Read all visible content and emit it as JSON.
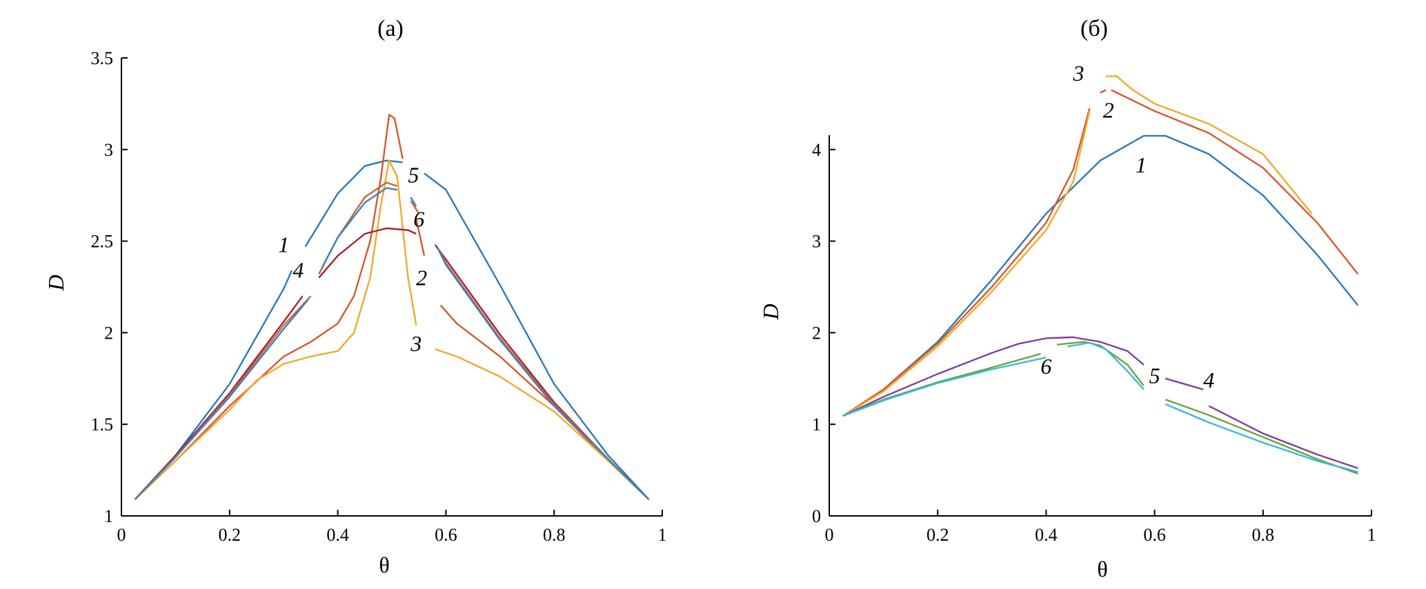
{
  "chart_data": [
    {
      "type": "line",
      "title": "(а)",
      "xlabel": "θ",
      "ylabel": "D",
      "xlim": [
        0,
        1
      ],
      "ylim": [
        1,
        3.5
      ],
      "x_ticks": [
        "0",
        "0.2",
        "0.4",
        "0.6",
        "0.8",
        "1"
      ],
      "y_ticks": [
        "1",
        "1.5",
        "2",
        "2.5",
        "3",
        "3.5"
      ],
      "grid": false,
      "legend": "none",
      "series": [
        {
          "color": "#2a7ab9",
          "segments": [
            [
              [
                0.025,
                1.09
              ],
              [
                0.1,
                1.33
              ],
              [
                0.2,
                1.72
              ],
              [
                0.3,
                2.24
              ],
              [
                0.315,
                2.34
              ]
            ],
            [
              [
                0.34,
                2.47
              ],
              [
                0.4,
                2.76
              ],
              [
                0.45,
                2.91
              ],
              [
                0.49,
                2.94
              ],
              [
                0.52,
                2.93
              ]
            ],
            [
              [
                0.56,
                2.87
              ],
              [
                0.6,
                2.78
              ],
              [
                0.7,
                2.26
              ],
              [
                0.8,
                1.72
              ],
              [
                0.9,
                1.33
              ],
              [
                0.975,
                1.09
              ]
            ]
          ]
        },
        {
          "color": "#d9572b",
          "segments": [
            [
              [
                0.025,
                1.09
              ],
              [
                0.1,
                1.3
              ],
              [
                0.2,
                1.6
              ],
              [
                0.3,
                1.87
              ],
              [
                0.35,
                1.95
              ],
              [
                0.4,
                2.05
              ],
              [
                0.43,
                2.2
              ],
              [
                0.46,
                2.5
              ],
              [
                0.48,
                2.85
              ],
              [
                0.495,
                3.19
              ],
              [
                0.505,
                3.17
              ],
              [
                0.52,
                2.95
              ]
            ],
            [
              [
                0.545,
                2.62
              ],
              [
                0.56,
                2.42
              ]
            ],
            [
              [
                0.59,
                2.15
              ],
              [
                0.62,
                2.05
              ],
              [
                0.7,
                1.87
              ],
              [
                0.8,
                1.6
              ],
              [
                0.9,
                1.3
              ],
              [
                0.975,
                1.09
              ]
            ]
          ]
        },
        {
          "color": "#efaa2b",
          "segments": [
            [
              [
                0.025,
                1.09
              ],
              [
                0.1,
                1.3
              ],
              [
                0.2,
                1.58
              ],
              [
                0.25,
                1.74
              ],
              [
                0.3,
                1.83
              ],
              [
                0.35,
                1.87
              ],
              [
                0.4,
                1.9
              ],
              [
                0.43,
                2.0
              ],
              [
                0.46,
                2.3
              ],
              [
                0.48,
                2.7
              ],
              [
                0.495,
                2.94
              ],
              [
                0.51,
                2.85
              ],
              [
                0.53,
                2.3
              ],
              [
                0.545,
                2.04
              ]
            ],
            [
              [
                0.58,
                1.91
              ],
              [
                0.62,
                1.87
              ],
              [
                0.7,
                1.76
              ],
              [
                0.8,
                1.57
              ],
              [
                0.9,
                1.3
              ],
              [
                0.975,
                1.09
              ]
            ]
          ]
        },
        {
          "color": "#aa1f2f",
          "segments": [
            [
              [
                0.025,
                1.09
              ],
              [
                0.1,
                1.33
              ],
              [
                0.2,
                1.67
              ],
              [
                0.3,
                2.06
              ],
              [
                0.335,
                2.2
              ]
            ],
            [
              [
                0.365,
                2.3
              ],
              [
                0.4,
                2.42
              ],
              [
                0.45,
                2.54
              ],
              [
                0.49,
                2.57
              ],
              [
                0.53,
                2.56
              ],
              [
                0.545,
                2.54
              ]
            ],
            [
              [
                0.58,
                2.48
              ],
              [
                0.6,
                2.4
              ],
              [
                0.7,
                1.99
              ],
              [
                0.8,
                1.62
              ],
              [
                0.9,
                1.31
              ],
              [
                0.975,
                1.09
              ]
            ]
          ]
        },
        {
          "color": "#c8643a",
          "segments": [
            [
              [
                0.025,
                1.09
              ],
              [
                0.1,
                1.32
              ],
              [
                0.2,
                1.66
              ],
              [
                0.3,
                2.04
              ],
              [
                0.35,
                2.2
              ]
            ],
            [
              [
                0.365,
                2.32
              ],
              [
                0.4,
                2.52
              ],
              [
                0.45,
                2.74
              ],
              [
                0.49,
                2.82
              ],
              [
                0.51,
                2.8
              ]
            ],
            [
              [
                0.535,
                2.72
              ],
              [
                0.55,
                2.65
              ]
            ],
            [
              [
                0.585,
                2.46
              ],
              [
                0.6,
                2.38
              ],
              [
                0.7,
                1.97
              ],
              [
                0.8,
                1.61
              ],
              [
                0.9,
                1.31
              ],
              [
                0.975,
                1.09
              ]
            ]
          ]
        },
        {
          "color": "#3a84c0",
          "segments": [
            [
              [
                0.025,
                1.09
              ],
              [
                0.1,
                1.32
              ],
              [
                0.2,
                1.65
              ],
              [
                0.3,
                2.02
              ],
              [
                0.345,
                2.18
              ]
            ],
            [
              [
                0.37,
                2.35
              ],
              [
                0.4,
                2.52
              ],
              [
                0.45,
                2.71
              ],
              [
                0.49,
                2.79
              ],
              [
                0.51,
                2.78
              ]
            ],
            [
              [
                0.535,
                2.74
              ],
              [
                0.545,
                2.69
              ]
            ],
            [
              [
                0.585,
                2.46
              ],
              [
                0.6,
                2.37
              ],
              [
                0.7,
                1.96
              ],
              [
                0.8,
                1.6
              ],
              [
                0.9,
                1.31
              ],
              [
                0.975,
                1.09
              ]
            ]
          ]
        }
      ],
      "curve_labels": [
        {
          "text": "1",
          "x": 0.3,
          "y": 2.44
        },
        {
          "text": "2",
          "x": 0.555,
          "y": 2.26
        },
        {
          "text": "3",
          "x": 0.545,
          "y": 1.9
        },
        {
          "text": "4",
          "x": 0.327,
          "y": 2.3
        },
        {
          "text": "5",
          "x": 0.54,
          "y": 2.82
        },
        {
          "text": "6",
          "x": 0.55,
          "y": 2.58
        }
      ]
    },
    {
      "type": "line",
      "title": "(б)",
      "xlabel": "θ",
      "ylabel": "D",
      "xlim": [
        0,
        1
      ],
      "ylim": [
        0,
        5
      ],
      "x_ticks": [
        "0",
        "0.2",
        "0.4",
        "0.6",
        "0.8",
        "1"
      ],
      "y_ticks": [
        "0",
        "1",
        "2",
        "3",
        "4"
      ],
      "grid": false,
      "legend": "none",
      "series": [
        {
          "color": "#2a7ab9",
          "segments": [
            [
              [
                0.025,
                1.09
              ],
              [
                0.1,
                1.38
              ],
              [
                0.2,
                1.9
              ],
              [
                0.3,
                2.58
              ],
              [
                0.4,
                3.3
              ],
              [
                0.5,
                3.88
              ],
              [
                0.58,
                4.15
              ],
              [
                0.62,
                4.15
              ],
              [
                0.7,
                3.95
              ],
              [
                0.8,
                3.5
              ],
              [
                0.9,
                2.85
              ],
              [
                0.975,
                2.3
              ]
            ]
          ]
        },
        {
          "color": "#d9572b",
          "segments": [
            [
              [
                0.025,
                1.09
              ],
              [
                0.1,
                1.38
              ],
              [
                0.2,
                1.88
              ],
              [
                0.3,
                2.5
              ],
              [
                0.4,
                3.2
              ],
              [
                0.45,
                3.78
              ],
              [
                0.48,
                4.45
              ]
            ],
            [
              [
                0.5,
                4.62
              ],
              [
                0.51,
                4.65
              ]
            ],
            [
              [
                0.52,
                4.65
              ],
              [
                0.6,
                4.42
              ],
              [
                0.7,
                4.18
              ],
              [
                0.8,
                3.8
              ],
              [
                0.9,
                3.2
              ],
              [
                0.975,
                2.64
              ]
            ]
          ]
        },
        {
          "color": "#efaa2b",
          "segments": [
            [
              [
                0.025,
                1.09
              ],
              [
                0.1,
                1.36
              ],
              [
                0.2,
                1.85
              ],
              [
                0.3,
                2.45
              ],
              [
                0.4,
                3.12
              ],
              [
                0.45,
                3.65
              ],
              [
                0.48,
                4.42
              ]
            ],
            [
              [
                0.51,
                4.8
              ],
              [
                0.53,
                4.8
              ],
              [
                0.56,
                4.65
              ],
              [
                0.6,
                4.5
              ],
              [
                0.7,
                4.28
              ],
              [
                0.8,
                3.95
              ],
              [
                0.89,
                3.3
              ]
            ]
          ]
        },
        {
          "color": "#7e3fa2",
          "segments": [
            [
              [
                0.025,
                1.09
              ],
              [
                0.1,
                1.3
              ],
              [
                0.2,
                1.55
              ],
              [
                0.3,
                1.78
              ],
              [
                0.35,
                1.88
              ],
              [
                0.4,
                1.94
              ],
              [
                0.45,
                1.95
              ],
              [
                0.5,
                1.9
              ],
              [
                0.55,
                1.8
              ],
              [
                0.58,
                1.65
              ]
            ],
            [
              [
                0.62,
                1.5
              ],
              [
                0.69,
                1.38
              ]
            ],
            [
              [
                0.7,
                1.2
              ],
              [
                0.8,
                0.9
              ],
              [
                0.9,
                0.67
              ],
              [
                0.975,
                0.52
              ]
            ]
          ]
        },
        {
          "color": "#67a539",
          "segments": [
            [
              [
                0.025,
                1.09
              ],
              [
                0.1,
                1.27
              ],
              [
                0.2,
                1.46
              ],
              [
                0.3,
                1.62
              ],
              [
                0.39,
                1.77
              ]
            ],
            [
              [
                0.42,
                1.87
              ],
              [
                0.47,
                1.9
              ],
              [
                0.5,
                1.86
              ],
              [
                0.55,
                1.65
              ],
              [
                0.58,
                1.42
              ]
            ],
            [
              [
                0.62,
                1.27
              ],
              [
                0.7,
                1.1
              ],
              [
                0.8,
                0.86
              ],
              [
                0.9,
                0.62
              ],
              [
                0.975,
                0.46
              ]
            ]
          ]
        },
        {
          "color": "#3ab8df",
          "segments": [
            [
              [
                0.025,
                1.09
              ],
              [
                0.1,
                1.26
              ],
              [
                0.2,
                1.45
              ],
              [
                0.3,
                1.6
              ],
              [
                0.4,
                1.73
              ]
            ],
            [
              [
                0.44,
                1.85
              ],
              [
                0.48,
                1.89
              ],
              [
                0.51,
                1.82
              ],
              [
                0.55,
                1.58
              ],
              [
                0.58,
                1.38
              ]
            ],
            [
              [
                0.62,
                1.22
              ],
              [
                0.7,
                1.02
              ],
              [
                0.8,
                0.8
              ],
              [
                0.9,
                0.6
              ],
              [
                0.975,
                0.48
              ]
            ]
          ]
        }
      ],
      "curve_labels": [
        {
          "text": "1",
          "x": 0.575,
          "y": 3.75
        },
        {
          "text": "2",
          "x": 0.515,
          "y": 4.35
        },
        {
          "text": "3",
          "x": 0.46,
          "y": 4.75
        },
        {
          "text": "4",
          "x": 0.7,
          "y": 1.4
        },
        {
          "text": "5",
          "x": 0.6,
          "y": 1.45
        },
        {
          "text": "6",
          "x": 0.4,
          "y": 1.55
        }
      ]
    }
  ]
}
